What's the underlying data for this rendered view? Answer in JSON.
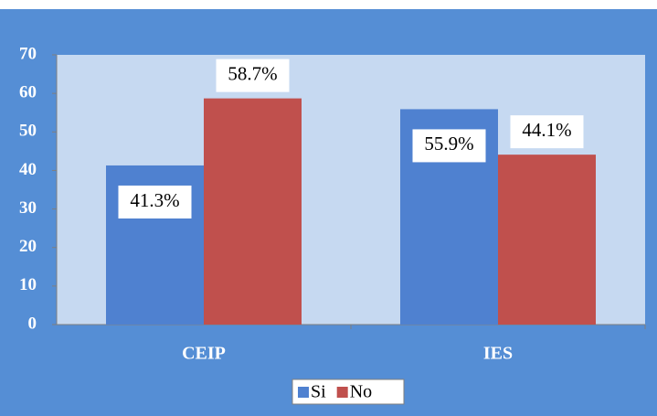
{
  "chart_data": {
    "type": "bar",
    "categories": [
      "CEIP",
      "IES"
    ],
    "series": [
      {
        "name": "Si",
        "color": "#4f81d0",
        "values": [
          41.3,
          55.9
        ],
        "value_labels": [
          "41.3%",
          "55.9%"
        ]
      },
      {
        "name": "No",
        "color": "#c0504d",
        "values": [
          58.7,
          44.1
        ],
        "value_labels": [
          "58.7%",
          "44.1%"
        ]
      }
    ],
    "ylim": [
      0,
      70
    ],
    "yticks": [
      0,
      10,
      20,
      30,
      40,
      50,
      60,
      70
    ],
    "grid": false,
    "legend": "bottom"
  }
}
